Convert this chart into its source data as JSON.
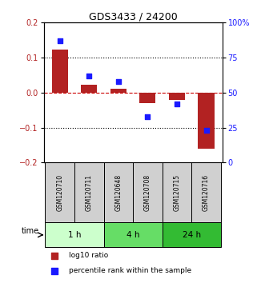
{
  "title": "GDS3433 / 24200",
  "samples": [
    "GSM120710",
    "GSM120711",
    "GSM120648",
    "GSM120708",
    "GSM120715",
    "GSM120716"
  ],
  "log10_ratio": [
    0.122,
    0.022,
    0.01,
    -0.03,
    -0.02,
    -0.16
  ],
  "percentile_rank": [
    87,
    62,
    58,
    33,
    42,
    23
  ],
  "bar_color": "#b22222",
  "square_color": "#1a1aff",
  "ylim_left": [
    -0.2,
    0.2
  ],
  "ylim_right": [
    0,
    100
  ],
  "yticks_left": [
    -0.2,
    -0.1,
    0.0,
    0.1,
    0.2
  ],
  "yticks_right": [
    0,
    25,
    50,
    75,
    100
  ],
  "ytick_labels_right": [
    "0",
    "25",
    "50",
    "75",
    "100%"
  ],
  "time_label": "time",
  "legend": [
    {
      "color": "#b22222",
      "label": "log10 ratio"
    },
    {
      "color": "#1a1aff",
      "label": "percentile rank within the sample"
    }
  ],
  "hline_color": "#cc0000",
  "dotted_line_color": "#000000",
  "bar_width": 0.55,
  "square_size": 25,
  "group_colors": [
    "#ccffcc",
    "#66dd66",
    "#33bb33"
  ],
  "group_labels": [
    "1 h",
    "4 h",
    "24 h"
  ],
  "group_starts": [
    0,
    2,
    4
  ],
  "group_ends": [
    1,
    3,
    5
  ]
}
